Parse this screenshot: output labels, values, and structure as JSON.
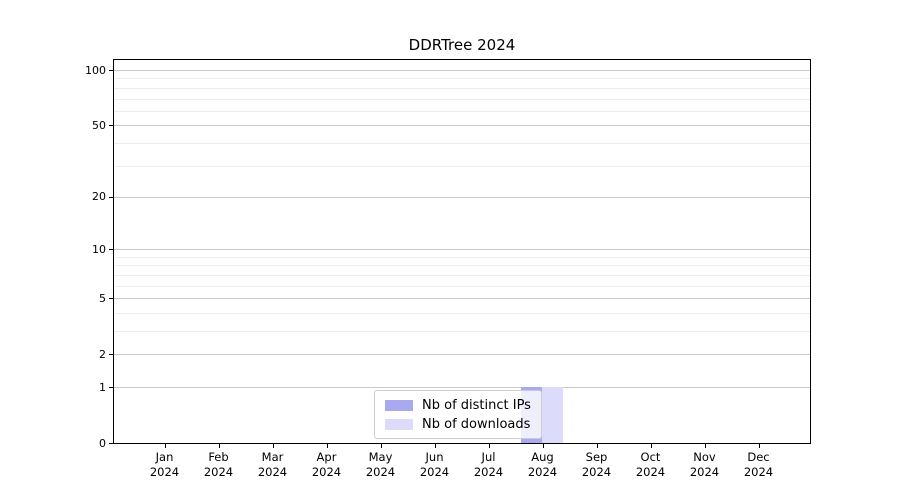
{
  "chart_data": {
    "type": "bar",
    "title": "DDRTree 2024",
    "x_categories": [
      {
        "month": "Jan",
        "year": "2024"
      },
      {
        "month": "Feb",
        "year": "2024"
      },
      {
        "month": "Mar",
        "year": "2024"
      },
      {
        "month": "Apr",
        "year": "2024"
      },
      {
        "month": "May",
        "year": "2024"
      },
      {
        "month": "Jun",
        "year": "2024"
      },
      {
        "month": "Jul",
        "year": "2024"
      },
      {
        "month": "Aug",
        "year": "2024"
      },
      {
        "month": "Sep",
        "year": "2024"
      },
      {
        "month": "Oct",
        "year": "2024"
      },
      {
        "month": "Nov",
        "year": "2024"
      },
      {
        "month": "Dec",
        "year": "2024"
      }
    ],
    "series": [
      {
        "name": "Nb of distinct IPs",
        "color": "#a9a9f0",
        "values": [
          0,
          0,
          0,
          0,
          0,
          0,
          0,
          1,
          0,
          0,
          0,
          0
        ]
      },
      {
        "name": "Nb of downloads",
        "color": "#dcdcfa",
        "values": [
          0,
          0,
          0,
          0,
          0,
          0,
          0,
          1,
          0,
          0,
          0,
          0
        ]
      }
    ],
    "y_axis": {
      "scale": "log1p",
      "ticks": [
        0,
        1,
        2,
        5,
        10,
        20,
        50,
        100
      ],
      "minor_gridlines": [
        3,
        4,
        6,
        7,
        8,
        9,
        30,
        40,
        60,
        70,
        80,
        90
      ],
      "max": 100
    },
    "grid": "horizontal",
    "legend_position": "bottom-center",
    "colors": {
      "grid_major": "#c9c9c9",
      "grid_minor": "#ececec",
      "axis": "#000000",
      "background": "#ffffff"
    }
  }
}
